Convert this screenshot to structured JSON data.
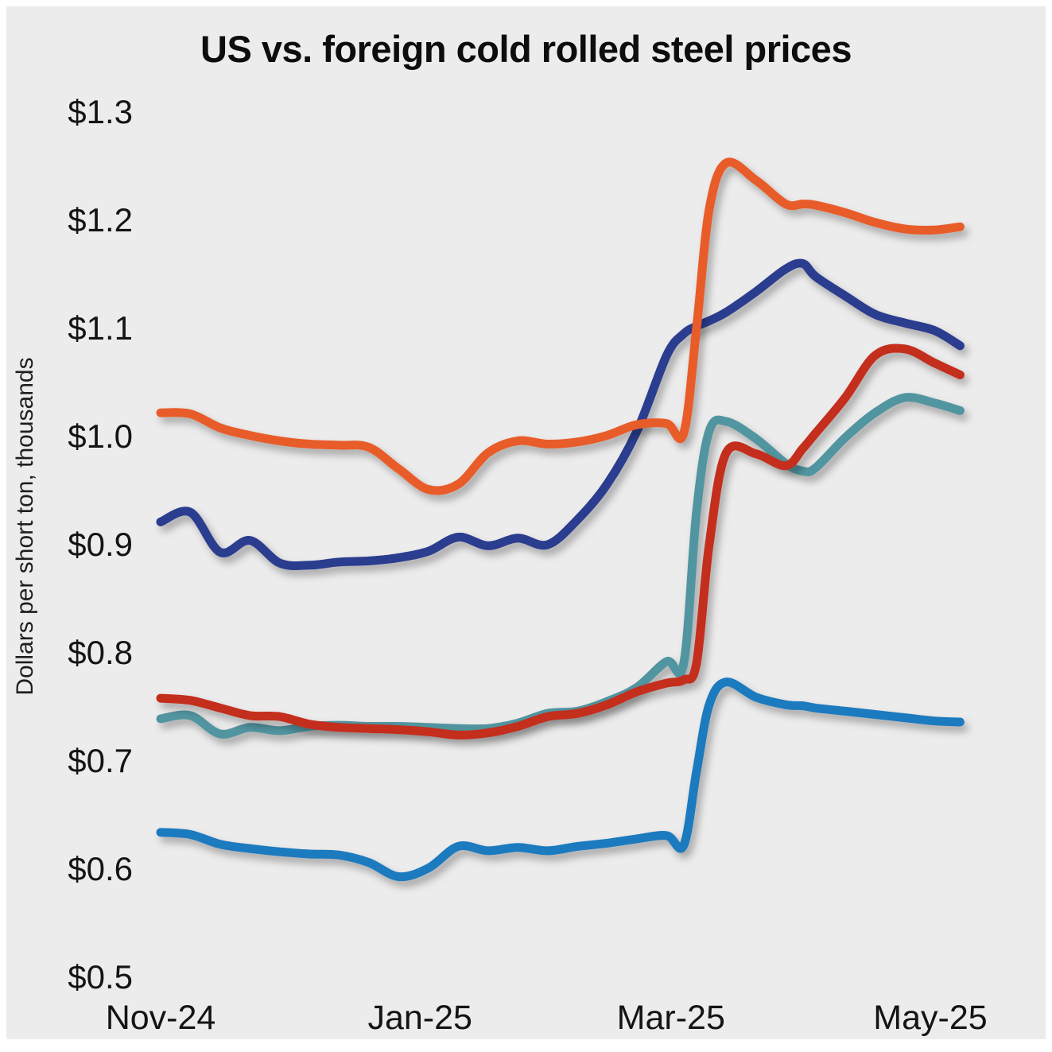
{
  "chart": {
    "title": "US vs. foreign cold rolled steel prices",
    "y_axis_label": "Dollars per short ton, thousands"
  },
  "chart_data": {
    "type": "line",
    "title": "US vs. foreign cold rolled steel prices",
    "ylabel": "Dollars per short ton, thousands",
    "xlabel": "",
    "grid": false,
    "legend": "none",
    "background_color": "#EDECEC",
    "ylim": [
      0.5,
      1.3
    ],
    "y_ticks": [
      {
        "value": 1.3,
        "label": "$1.3"
      },
      {
        "value": 1.2,
        "label": "$1.2"
      },
      {
        "value": 1.1,
        "label": "$1.1"
      },
      {
        "value": 1.0,
        "label": "$1.0"
      },
      {
        "value": 0.9,
        "label": "$0.9"
      },
      {
        "value": 0.8,
        "label": "$0.8"
      },
      {
        "value": 0.7,
        "label": "$0.7"
      },
      {
        "value": 0.6,
        "label": "$0.6"
      },
      {
        "value": 0.5,
        "label": "$0.5"
      }
    ],
    "x_unit": "days since Nov 1 2024, weekly samples",
    "x_range_days": [
      0,
      188
    ],
    "x_ticks": [
      {
        "day": 0,
        "label": "Nov-24"
      },
      {
        "day": 61,
        "label": "Jan-25"
      },
      {
        "day": 120,
        "label": "Mar-25"
      },
      {
        "day": 181,
        "label": "May-25"
      }
    ],
    "x_days": [
      0,
      7,
      14,
      21,
      28,
      35,
      42,
      49,
      56,
      63,
      70,
      77,
      84,
      91,
      98,
      105,
      112,
      119,
      123,
      126,
      129,
      133,
      140,
      147,
      151,
      154,
      161,
      168,
      175,
      182,
      188
    ],
    "series": [
      {
        "name": "navy-line",
        "color": "#2C3D8F",
        "values": [
          0.921,
          0.93,
          0.893,
          0.904,
          0.883,
          0.881,
          0.884,
          0.885,
          0.888,
          0.894,
          0.907,
          0.899,
          0.906,
          0.9,
          0.923,
          0.956,
          1.005,
          1.075,
          1.095,
          1.102,
          1.107,
          1.115,
          1.134,
          1.155,
          1.16,
          1.148,
          1.13,
          1.113,
          1.105,
          1.098,
          1.084
        ]
      },
      {
        "name": "orange-line",
        "color": "#E85C2B",
        "values": [
          1.022,
          1.021,
          1.008,
          1.001,
          0.996,
          0.993,
          0.992,
          0.99,
          0.97,
          0.951,
          0.956,
          0.985,
          0.996,
          0.993,
          0.995,
          1.001,
          1.011,
          1.012,
          1.003,
          1.1,
          1.21,
          1.253,
          1.237,
          1.215,
          1.215,
          1.214,
          1.207,
          1.198,
          1.192,
          1.191,
          1.194
        ]
      },
      {
        "name": "teal-line",
        "color": "#5195A0",
        "values": [
          0.739,
          0.742,
          0.725,
          0.731,
          0.728,
          0.732,
          0.733,
          0.732,
          0.732,
          0.731,
          0.73,
          0.73,
          0.735,
          0.744,
          0.746,
          0.755,
          0.768,
          0.792,
          0.79,
          0.93,
          1.005,
          1.014,
          0.998,
          0.975,
          0.968,
          0.971,
          0.999,
          1.022,
          1.036,
          1.031,
          1.024
        ]
      },
      {
        "name": "red-line",
        "color": "#C42D1F",
        "values": [
          0.758,
          0.756,
          0.749,
          0.742,
          0.741,
          0.734,
          0.731,
          0.73,
          0.729,
          0.727,
          0.724,
          0.726,
          0.732,
          0.741,
          0.744,
          0.752,
          0.764,
          0.772,
          0.775,
          0.79,
          0.9,
          0.985,
          0.984,
          0.973,
          0.989,
          1.003,
          1.036,
          1.075,
          1.081,
          1.068,
          1.057
        ]
      },
      {
        "name": "blue-line",
        "color": "#1A7ABF",
        "values": [
          0.634,
          0.632,
          0.623,
          0.619,
          0.616,
          0.614,
          0.613,
          0.606,
          0.593,
          0.601,
          0.621,
          0.617,
          0.62,
          0.617,
          0.621,
          0.624,
          0.628,
          0.631,
          0.622,
          0.69,
          0.752,
          0.773,
          0.759,
          0.752,
          0.751,
          0.749,
          0.746,
          0.743,
          0.74,
          0.737,
          0.736
        ]
      }
    ]
  }
}
